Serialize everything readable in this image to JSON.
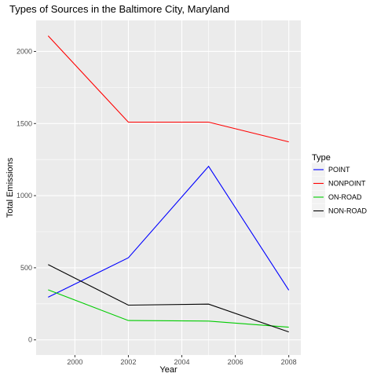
{
  "chart_data": {
    "type": "line",
    "title": "Types of Sources in the Baltimore City, Maryland",
    "xlabel": "Year",
    "ylabel": "Total Emissions",
    "x": [
      1999,
      2002,
      2005,
      2008
    ],
    "xlim": [
      1998.55,
      2008.45
    ],
    "ylim": [
      -105,
      2215
    ],
    "xticks": [
      2000,
      2002,
      2004,
      2006,
      2008
    ],
    "yticks": [
      0,
      500,
      1000,
      1500,
      2000
    ],
    "grid": true,
    "background": "#ebebeb",
    "legend": {
      "title": "Type",
      "position": "right"
    },
    "series": [
      {
        "name": "POINT",
        "color": "#0000ff",
        "values": [
          296,
          569,
          1203,
          345
        ]
      },
      {
        "name": "NONPOINT",
        "color": "#ff0000",
        "values": [
          2108,
          1510,
          1510,
          1373
        ]
      },
      {
        "name": "ON-ROAD",
        "color": "#00cc00",
        "values": [
          347,
          134,
          130,
          88
        ]
      },
      {
        "name": "NON-ROAD",
        "color": "#000000",
        "values": [
          522,
          241,
          248,
          55
        ]
      }
    ]
  }
}
